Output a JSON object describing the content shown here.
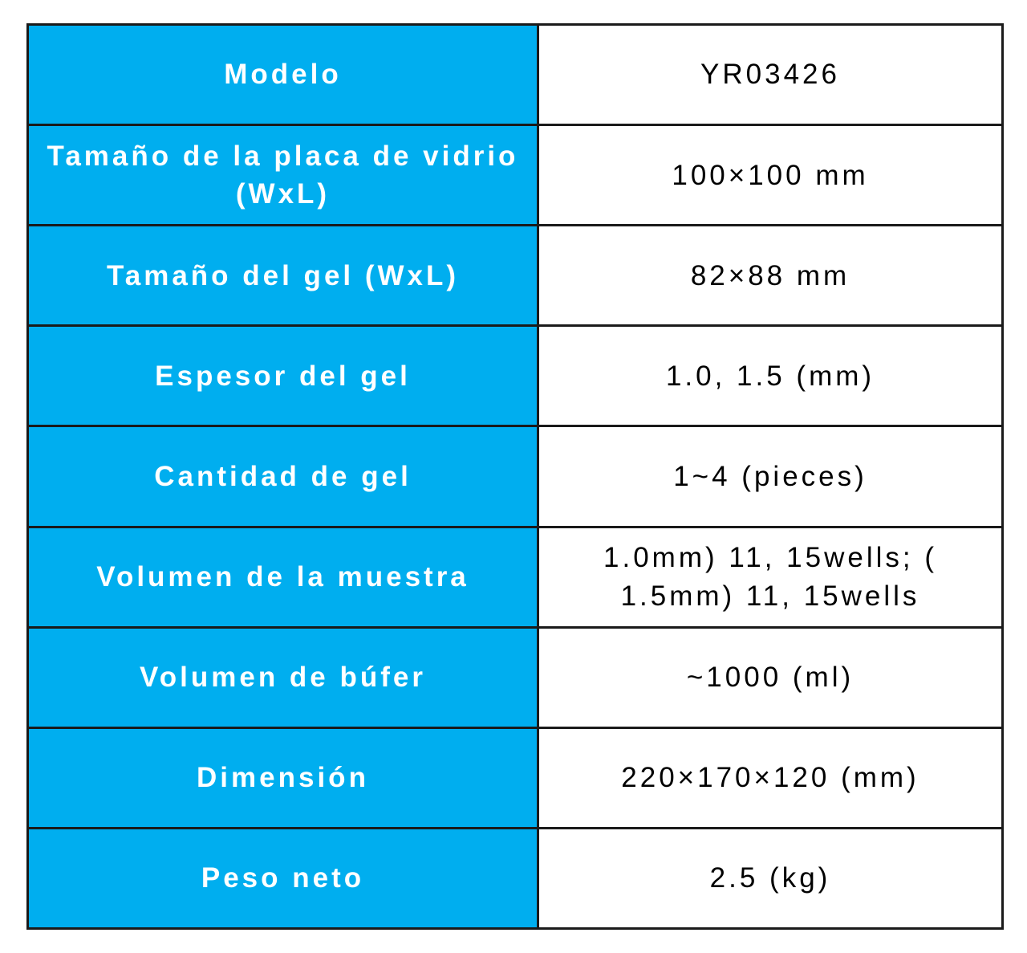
{
  "colors": {
    "header_bg": "#00AEEF",
    "header_text": "#FFFFFF",
    "value_text": "#000000",
    "border": "#1A1A1A",
    "page_bg": "#FFFFFF"
  },
  "table": {
    "rows": [
      {
        "label": "Modelo",
        "value": "YR03426"
      },
      {
        "label": "Tamaño de la placa de vidrio\n(WxL)",
        "value": "100×100 mm"
      },
      {
        "label": "Tamaño del gel (WxL)",
        "value": "82×88 mm"
      },
      {
        "label": "Espesor del gel",
        "value": "1.0, 1.5 (mm)"
      },
      {
        "label": "Cantidad de gel",
        "value": "1~4 (pieces)"
      },
      {
        "label": "Volumen de la muestra",
        "value": "1.0mm) 11, 15wells; (\n1.5mm) 11, 15wells"
      },
      {
        "label": "Volumen de búfer",
        "value": "~1000 (ml)"
      },
      {
        "label": "Dimensión",
        "value": "220×170×120 (mm)"
      },
      {
        "label": "Peso neto",
        "value": "2.5 (kg)"
      }
    ]
  }
}
